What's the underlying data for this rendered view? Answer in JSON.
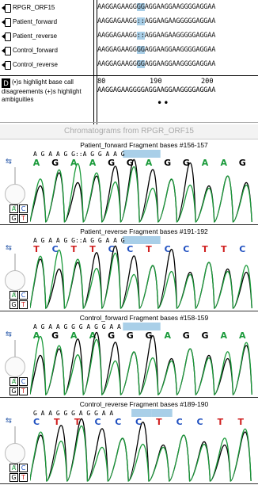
{
  "alignment": {
    "rows": [
      {
        "name": "RPGR_ORF15",
        "seq_pre": "AAGGAGAAGG",
        "seq_hl": "GG",
        "seq_post": "AGGAAGGAAGGGGAGGAA"
      },
      {
        "name": "Patient_forward",
        "seq_pre": "AAGGAGAAGG",
        "seq_hl": "::",
        "seq_post": "AGGAAGAAGGGGGAGGAA"
      },
      {
        "name": "Patient_reverse",
        "seq_pre": "AAGGAGAAGG",
        "seq_hl": "::",
        "seq_post": "AGGAAGAAGGGGGAGGAA"
      },
      {
        "name": "Control_forward",
        "seq_pre": "AAGGAGAAGG",
        "seq_hl": "GG",
        "seq_post": "AGGAAGGAAGGGGAGGAA"
      },
      {
        "name": "Control_reverse",
        "seq_pre": "AAGGAGAAGG",
        "seq_hl": "GG",
        "seq_post": "AGGAAGGAAGGGGAGGAA"
      }
    ],
    "ruler_labels": [
      "80",
      "190",
      "200"
    ],
    "consensus": "AAGGAGAAGGGGAGGAAGGAAGGGGAGGAA",
    "marker": "••",
    "legend": "(•)s highlight base call disagreements (+)s highlight ambiguities"
  },
  "chromatograms": {
    "window_title": "Chromatograms from RPGR_ORF15",
    "panels": [
      {
        "title": "Patient_forward Fragment bases #156-157",
        "top_bases": "A G A A G G::A G G A A G",
        "calls": [
          "A",
          "G",
          "A",
          "A",
          "G",
          "G",
          "A",
          "G",
          "G",
          "A",
          "A",
          "G"
        ]
      },
      {
        "title": "Patient_reverse Fragment bases #191-192",
        "top_bases": "A G A A G G::A G G A A G",
        "calls": [
          "T",
          "C",
          "T",
          "T",
          "C",
          "C",
          "T",
          "C",
          "C",
          "T",
          "T",
          "C"
        ]
      },
      {
        "title": "Control_forward Fragment bases #158-159",
        "top_bases": "A G A A G G G A G G A A",
        "calls": [
          "A",
          "G",
          "A",
          "A",
          "G",
          "G",
          "G",
          "A",
          "G",
          "G",
          "A",
          "A"
        ]
      },
      {
        "title": "Control_reverse Fragment bases #189-190",
        "top_bases": "G A A G G G A G G A A",
        "calls": [
          "C",
          "T",
          "T",
          "C",
          "C",
          "C",
          "T",
          "C",
          "C",
          "T",
          "T"
        ]
      }
    ],
    "acgt": [
      "A",
      "C",
      "G",
      "T"
    ]
  },
  "colors": {
    "A": "#1a9a3a",
    "G": "#000000",
    "T": "#d02020",
    "C": "#2050c0",
    "highlight": "#a9cfe8"
  }
}
